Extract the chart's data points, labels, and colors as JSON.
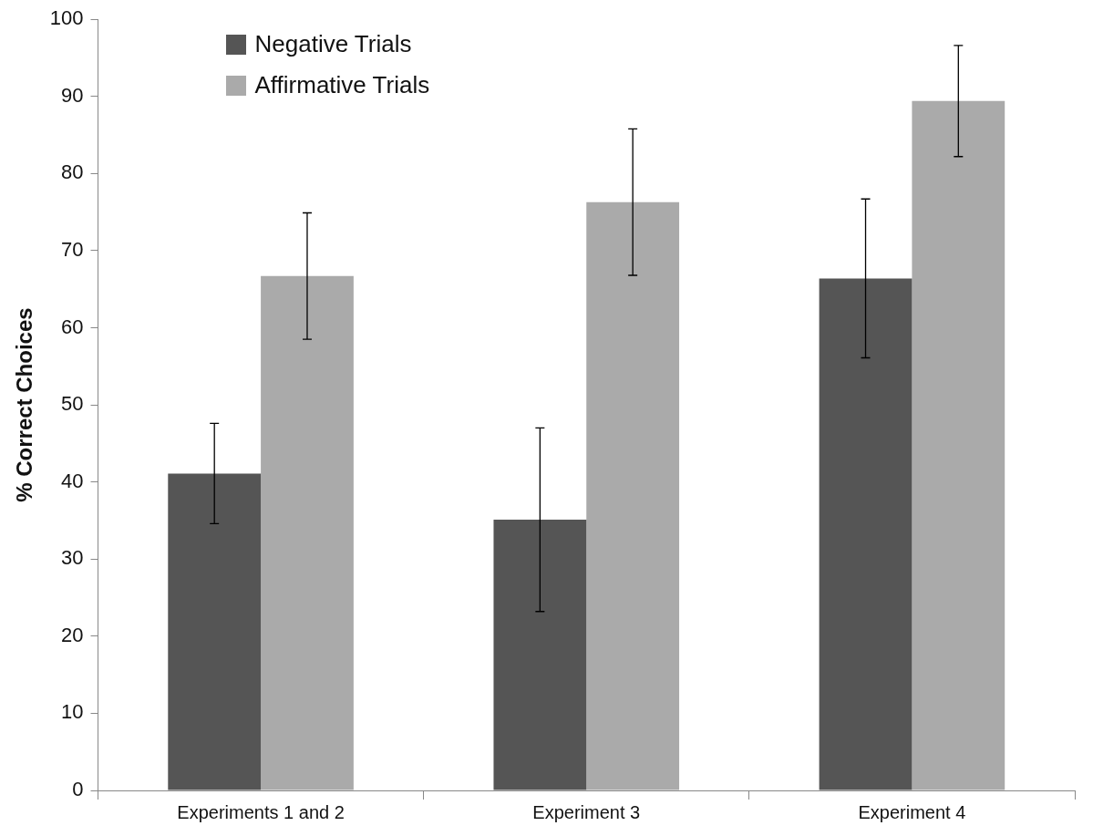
{
  "chart_data": {
    "type": "bar",
    "ylabel": "% Correct Choices",
    "categories": [
      "Experiments 1 and 2",
      "Experiment 3",
      "Experiment 4"
    ],
    "series": [
      {
        "name": "Negative Trials",
        "color": "#555555",
        "values": [
          41.1,
          35.1,
          66.4
        ],
        "errors": [
          6.5,
          11.9,
          10.3
        ]
      },
      {
        "name": "Affirmative Trials",
        "color": "#aaaaaa",
        "values": [
          66.7,
          76.3,
          89.4
        ],
        "errors": [
          8.2,
          9.5,
          7.2
        ]
      }
    ],
    "ylim": [
      0,
      100
    ],
    "yticks": [
      0,
      10,
      20,
      30,
      40,
      50,
      60,
      70,
      80,
      90,
      100
    ],
    "grid": false,
    "legend": "top left"
  }
}
